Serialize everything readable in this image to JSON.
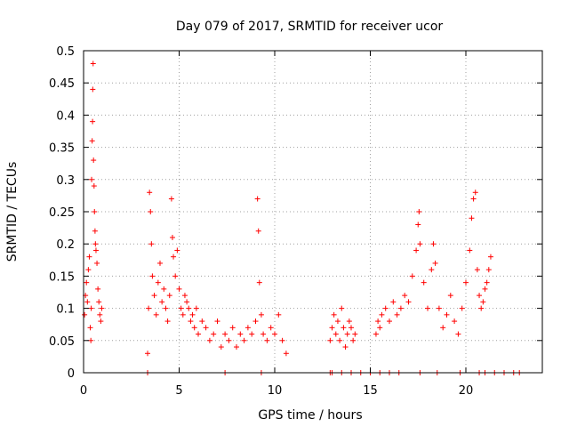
{
  "chart_data": {
    "type": "scatter",
    "title": "Day 079 of 2017, SRMTID for receiver ucor",
    "xlabel": "GPS time / hours",
    "ylabel": "SRMTID / TECUs",
    "xlim": [
      0,
      24
    ],
    "ylim": [
      0,
      0.5
    ],
    "xticks": [
      0,
      5,
      10,
      15,
      20
    ],
    "xtick_labels": [
      "0",
      "5",
      "10",
      "15",
      "20"
    ],
    "yticks": [
      0,
      0.05,
      0.1,
      0.15,
      0.2,
      0.25,
      0.3,
      0.35,
      0.4,
      0.45,
      0.5
    ],
    "ytick_labels": [
      "0",
      "0.05",
      "0.1",
      "0.15",
      "0.2",
      "0.25",
      "0.3",
      "0.35",
      "0.4",
      "0.45",
      "0.5"
    ],
    "grid": true,
    "marker": "+",
    "color": "#ff0000",
    "series": [
      {
        "name": "SRMTID",
        "points": [
          [
            0.05,
            0.09
          ],
          [
            0.1,
            0.12
          ],
          [
            0.15,
            0.14
          ],
          [
            0.2,
            0.11
          ],
          [
            0.25,
            0.16
          ],
          [
            0.3,
            0.18
          ],
          [
            0.35,
            0.07
          ],
          [
            0.38,
            0.05
          ],
          [
            0.4,
            0.1
          ],
          [
            0.42,
            0.3
          ],
          [
            0.45,
            0.36
          ],
          [
            0.47,
            0.39
          ],
          [
            0.48,
            0.44
          ],
          [
            0.5,
            0.48
          ],
          [
            0.52,
            0.33
          ],
          [
            0.55,
            0.29
          ],
          [
            0.57,
            0.25
          ],
          [
            0.6,
            0.22
          ],
          [
            0.62,
            0.2
          ],
          [
            0.65,
            0.19
          ],
          [
            0.7,
            0.17
          ],
          [
            0.75,
            0.13
          ],
          [
            0.8,
            0.11
          ],
          [
            0.85,
            0.09
          ],
          [
            0.9,
            0.08
          ],
          [
            0.95,
            0.1
          ],
          [
            3.35,
            0.03
          ],
          [
            3.4,
            0.1
          ],
          [
            3.45,
            0.28
          ],
          [
            3.5,
            0.25
          ],
          [
            3.55,
            0.2
          ],
          [
            3.6,
            0.15
          ],
          [
            3.7,
            0.12
          ],
          [
            3.8,
            0.09
          ],
          [
            3.9,
            0.14
          ],
          [
            4.0,
            0.17
          ],
          [
            4.1,
            0.11
          ],
          [
            4.2,
            0.13
          ],
          [
            4.3,
            0.1
          ],
          [
            4.4,
            0.08
          ],
          [
            4.5,
            0.12
          ],
          [
            4.6,
            0.27
          ],
          [
            4.65,
            0.21
          ],
          [
            4.7,
            0.18
          ],
          [
            4.8,
            0.15
          ],
          [
            4.9,
            0.19
          ],
          [
            5.0,
            0.13
          ],
          [
            5.1,
            0.1
          ],
          [
            5.2,
            0.09
          ],
          [
            5.3,
            0.12
          ],
          [
            5.4,
            0.11
          ],
          [
            5.5,
            0.1
          ],
          [
            5.6,
            0.08
          ],
          [
            5.7,
            0.09
          ],
          [
            5.8,
            0.07
          ],
          [
            5.9,
            0.1
          ],
          [
            6.0,
            0.06
          ],
          [
            6.2,
            0.08
          ],
          [
            6.4,
            0.07
          ],
          [
            6.6,
            0.05
          ],
          [
            6.8,
            0.06
          ],
          [
            7.0,
            0.08
          ],
          [
            7.2,
            0.04
          ],
          [
            7.4,
            0.06
          ],
          [
            7.6,
            0.05
          ],
          [
            7.8,
            0.07
          ],
          [
            8.0,
            0.04
          ],
          [
            8.2,
            0.06
          ],
          [
            8.4,
            0.05
          ],
          [
            8.6,
            0.07
          ],
          [
            8.8,
            0.06
          ],
          [
            9.0,
            0.08
          ],
          [
            9.1,
            0.27
          ],
          [
            9.15,
            0.22
          ],
          [
            9.2,
            0.14
          ],
          [
            9.3,
            0.09
          ],
          [
            9.4,
            0.06
          ],
          [
            9.6,
            0.05
          ],
          [
            9.8,
            0.07
          ],
          [
            10.0,
            0.06
          ],
          [
            10.2,
            0.09
          ],
          [
            10.4,
            0.05
          ],
          [
            10.6,
            0.03
          ],
          [
            12.9,
            0.05
          ],
          [
            13.0,
            0.07
          ],
          [
            13.1,
            0.09
          ],
          [
            13.2,
            0.06
          ],
          [
            13.3,
            0.08
          ],
          [
            13.4,
            0.05
          ],
          [
            13.5,
            0.1
          ],
          [
            13.6,
            0.07
          ],
          [
            13.7,
            0.04
          ],
          [
            13.8,
            0.06
          ],
          [
            13.9,
            0.08
          ],
          [
            14.0,
            0.07
          ],
          [
            14.1,
            0.05
          ],
          [
            14.2,
            0.06
          ],
          [
            15.3,
            0.06
          ],
          [
            15.4,
            0.08
          ],
          [
            15.5,
            0.07
          ],
          [
            15.6,
            0.09
          ],
          [
            15.8,
            0.1
          ],
          [
            16.0,
            0.08
          ],
          [
            16.2,
            0.11
          ],
          [
            16.4,
            0.09
          ],
          [
            16.6,
            0.1
          ],
          [
            16.8,
            0.12
          ],
          [
            17.0,
            0.11
          ],
          [
            17.2,
            0.15
          ],
          [
            17.4,
            0.19
          ],
          [
            17.5,
            0.23
          ],
          [
            17.55,
            0.25
          ],
          [
            17.6,
            0.2
          ],
          [
            17.8,
            0.14
          ],
          [
            18.0,
            0.1
          ],
          [
            18.2,
            0.16
          ],
          [
            18.3,
            0.2
          ],
          [
            18.4,
            0.17
          ],
          [
            18.6,
            0.1
          ],
          [
            18.8,
            0.07
          ],
          [
            19.0,
            0.09
          ],
          [
            19.2,
            0.12
          ],
          [
            19.4,
            0.08
          ],
          [
            19.6,
            0.06
          ],
          [
            19.8,
            0.1
          ],
          [
            20.0,
            0.14
          ],
          [
            20.2,
            0.19
          ],
          [
            20.3,
            0.24
          ],
          [
            20.4,
            0.27
          ],
          [
            20.5,
            0.28
          ],
          [
            20.6,
            0.16
          ],
          [
            20.7,
            0.12
          ],
          [
            20.8,
            0.1
          ],
          [
            20.9,
            0.11
          ],
          [
            21.0,
            0.13
          ],
          [
            21.1,
            0.14
          ],
          [
            21.2,
            0.16
          ],
          [
            21.3,
            0.18
          ],
          [
            3.35,
            0.0
          ],
          [
            7.4,
            0.0
          ],
          [
            9.3,
            0.0
          ],
          [
            12.9,
            0.0
          ],
          [
            13.0,
            0.0
          ],
          [
            13.5,
            0.0
          ],
          [
            14.0,
            0.0
          ],
          [
            14.5,
            0.0
          ],
          [
            15.0,
            0.0
          ],
          [
            15.5,
            0.0
          ],
          [
            16.0,
            0.0
          ],
          [
            16.5,
            0.0
          ],
          [
            17.6,
            0.0
          ],
          [
            18.5,
            0.0
          ],
          [
            19.7,
            0.0
          ],
          [
            20.7,
            0.0
          ],
          [
            21.0,
            0.0
          ],
          [
            21.5,
            0.0
          ],
          [
            22.0,
            0.0
          ],
          [
            22.5,
            0.0
          ],
          [
            22.8,
            0.0
          ]
        ]
      }
    ]
  }
}
